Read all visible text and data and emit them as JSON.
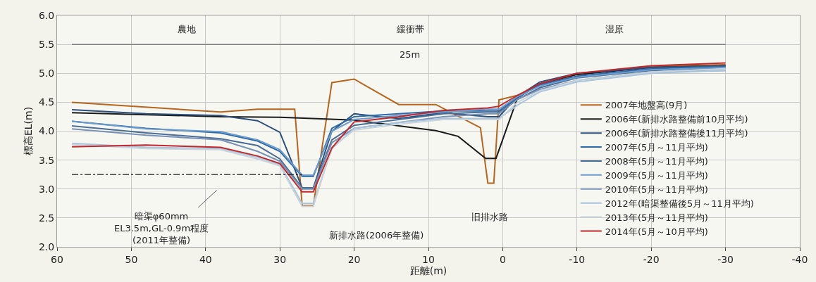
{
  "chart_data": {
    "type": "line",
    "xlabel": "距離(m)",
    "ylabel": "標高EL(m)",
    "xlim": [
      60,
      -40
    ],
    "xticks": [
      60,
      50,
      40,
      30,
      20,
      10,
      0,
      -10,
      -20,
      -30,
      -40
    ],
    "ylim": [
      2.0,
      6.0
    ],
    "yticks": [
      {
        "value": 2.0,
        "label": "2.0"
      },
      {
        "value": 2.5,
        "label": "2.5"
      },
      {
        "value": 3.0,
        "label": "3.0"
      },
      {
        "value": 3.5,
        "label": "3.5"
      },
      {
        "value": 4.0,
        "label": "4.0"
      },
      {
        "value": 4.5,
        "label": "4.5"
      },
      {
        "value": 5.0,
        "label": "5.0"
      },
      {
        "value": 5.5,
        "label": "5.5"
      },
      {
        "value": 6.0,
        "label": "6.0"
      }
    ],
    "grid": true,
    "legend": "bottom right",
    "marker": "none",
    "line_style": "solid",
    "x": [
      58,
      48,
      38,
      33,
      30,
      27,
      25.5,
      23,
      20,
      14,
      8,
      2,
      0.5,
      -2,
      -5,
      -10,
      -20,
      -30
    ],
    "series": [
      {
        "name": "2007年地盤高(9月)",
        "color": "#b5651d",
        "x": [
          58,
          38,
          33,
          28,
          27,
          25.5,
          23,
          20,
          14,
          9,
          3,
          2,
          1.2,
          0.5,
          -2,
          -5,
          -10,
          -20,
          -30
        ],
        "values": [
          4.5,
          4.33,
          4.38,
          4.38,
          2.71,
          2.71,
          4.84,
          4.9,
          4.46,
          4.46,
          4.06,
          3.1,
          3.1,
          4.54,
          4.62,
          4.8,
          4.98,
          5.12,
          5.15
        ]
      },
      {
        "name": "2006年(新排水路整備前10月平均)",
        "color": "#1a1a1a",
        "x": [
          58,
          38,
          30,
          20,
          9,
          6,
          2.3,
          0.9,
          -2,
          -5,
          -10,
          -20,
          -30
        ],
        "values": [
          4.32,
          4.25,
          4.24,
          4.19,
          4.01,
          3.91,
          3.53,
          3.53,
          4.58,
          4.82,
          4.98,
          5.1,
          5.13
        ]
      },
      {
        "name": "2006年(新排水路整備後11月平均)",
        "color": "#2c4f7c",
        "values": [
          4.37,
          4.3,
          4.27,
          4.18,
          3.98,
          3.02,
          3.02,
          4.0,
          4.3,
          4.22,
          4.32,
          4.25,
          4.25,
          4.6,
          4.85,
          5.0,
          5.1,
          5.13
        ]
      },
      {
        "name": "2007年(5月～11月平均)",
        "color": "#2e6aa8",
        "values": [
          4.17,
          4.05,
          3.97,
          3.83,
          3.65,
          3.22,
          3.22,
          4.05,
          4.25,
          4.3,
          4.35,
          4.35,
          4.35,
          4.58,
          4.8,
          4.95,
          5.08,
          5.12
        ]
      },
      {
        "name": "2008年(5月～11月平均)",
        "color": "#4a6e96",
        "values": [
          4.09,
          3.97,
          3.87,
          3.75,
          3.52,
          3.02,
          3.02,
          3.85,
          4.1,
          4.2,
          4.3,
          4.33,
          4.33,
          4.55,
          4.75,
          4.92,
          5.05,
          5.1
        ]
      },
      {
        "name": "2009年(5月～11月平均)",
        "color": "#6c9ccc",
        "values": [
          4.17,
          4.04,
          3.99,
          3.85,
          3.68,
          3.24,
          3.24,
          4.0,
          4.2,
          4.27,
          4.33,
          4.38,
          4.38,
          4.6,
          4.78,
          4.93,
          5.06,
          5.1
        ]
      },
      {
        "name": "2010年(5月～11月平均)",
        "color": "#7891b5",
        "values": [
          4.04,
          3.93,
          3.85,
          3.65,
          3.48,
          3.0,
          3.0,
          3.8,
          4.05,
          4.15,
          4.25,
          4.3,
          4.3,
          4.55,
          4.72,
          4.88,
          5.02,
          5.05
        ]
      },
      {
        "name": "2012年(暗渠整備後5月～11月平均)",
        "color": "#a9c4dc",
        "values": [
          3.79,
          3.72,
          3.7,
          3.55,
          3.42,
          2.75,
          2.75,
          3.7,
          4.05,
          4.15,
          4.22,
          4.22,
          4.22,
          4.45,
          4.68,
          4.85,
          5.0,
          5.05
        ]
      },
      {
        "name": "2013年(5月～11月平均)",
        "color": "#c8d3dc",
        "values": [
          3.77,
          3.7,
          3.68,
          3.52,
          3.4,
          2.7,
          2.7,
          3.72,
          4.02,
          4.12,
          4.2,
          4.2,
          4.2,
          4.5,
          4.7,
          4.88,
          5.02,
          5.08
        ]
      },
      {
        "name": "2014年(5月～10月平均)",
        "color": "#c0282d",
        "values": [
          3.73,
          3.76,
          3.72,
          3.57,
          3.44,
          2.95,
          2.95,
          3.71,
          4.16,
          4.25,
          4.36,
          4.4,
          4.43,
          4.62,
          4.82,
          5.0,
          5.13,
          5.18
        ]
      },
      {
        "color": "#1a1a1a",
        "line_style": "dashed",
        "x": [
          58,
          27
        ],
        "values": [
          3.25,
          3.25
        ]
      }
    ],
    "annotations": [
      "農地",
      "緩衝帯",
      "湿原",
      "25m",
      "暗渠φ60mm\nEL3.5m,GL-0.9m程度\n(2011年整備)",
      "新排水路(2006年整備)",
      "旧排水路"
    ]
  }
}
